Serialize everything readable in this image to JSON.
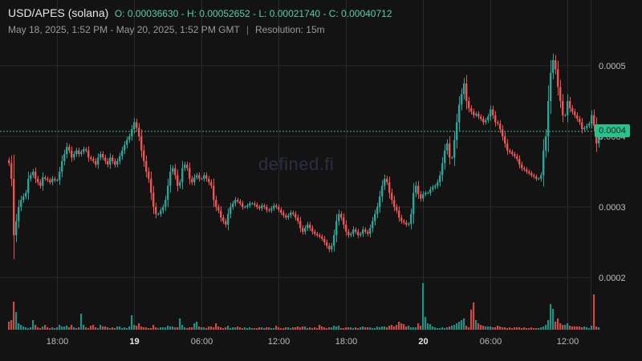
{
  "header": {
    "pair": "USD/APES (solana)",
    "ohlc": "O: 0.00036630 - H: 0.00052652 - L: 0.00021740 - C: 0.00040712",
    "range": "May 18, 2025, 1:52 PM - May 20, 2025, 1:52 PM GMT",
    "separator": "|",
    "resolution": "Resolution: 15m"
  },
  "watermark": "defined.fi",
  "current_price_label": "0.0004",
  "colors": {
    "background": "#131313",
    "up": "#26a69a",
    "down": "#ef5350",
    "grid": "#2a2a2a",
    "price_line": "#26c48f"
  },
  "chart_data": {
    "type": "candlestick",
    "title": "USD/APES (solana)",
    "resolution": "15m",
    "open": 0.0003663,
    "high": 0.00052652,
    "low": 0.0002174,
    "close": 0.00040712,
    "current_price": 0.00040712,
    "ylim": [
      0.00012,
      0.00058
    ],
    "y_ticks": [
      "0.0005",
      "0.0004",
      "0.0003",
      "0.0002"
    ],
    "y_tick_values": [
      0.0005,
      0.0004,
      0.0003,
      0.0002
    ],
    "x_tick_labels": [
      "18:00",
      "19",
      "06:00",
      "12:00",
      "18:00",
      "20",
      "06:00",
      "12:00"
    ],
    "x_tick_bold": [
      false,
      true,
      false,
      false,
      false,
      true,
      false,
      false
    ],
    "x_tick_index": [
      20,
      52,
      80,
      112,
      140,
      172,
      200,
      232
    ],
    "grid": true,
    "series": [
      {
        "name": "price",
        "close": [
          0.000362,
          0.00034,
          0.00026,
          0.00028,
          0.0003,
          0.00031,
          0.000315,
          0.00032,
          0.00034,
          0.000345,
          0.00035,
          0.00034,
          0.000335,
          0.00033,
          0.000342,
          0.00034,
          0.000338,
          0.000335,
          0.00034,
          0.000338,
          0.000338,
          0.00035,
          0.000365,
          0.000375,
          0.000385,
          0.00038,
          0.00037,
          0.000375,
          0.00038,
          0.000375,
          0.000378,
          0.000382,
          0.00038,
          0.00037,
          0.000368,
          0.000365,
          0.00036,
          0.00037,
          0.000375,
          0.00037,
          0.000365,
          0.00036,
          0.00037,
          0.000365,
          0.00036,
          0.000365,
          0.000372,
          0.00038,
          0.000388,
          0.000395,
          0.0004,
          0.00041,
          0.00042,
          0.000412,
          0.0004,
          0.00038,
          0.000365,
          0.00035,
          0.00034,
          0.00032,
          0.0003,
          0.00029,
          0.00029,
          0.000295,
          0.0003,
          0.00031,
          0.00033,
          0.00035,
          0.000355,
          0.000345,
          0.00033,
          0.000335,
          0.000355,
          0.00036,
          0.000355,
          0.00034,
          0.000335,
          0.000342,
          0.000345,
          0.00034,
          0.00034,
          0.000345,
          0.00034,
          0.000335,
          0.00033,
          0.00031,
          0.0003,
          0.000295,
          0.000285,
          0.00028,
          0.000275,
          0.00029,
          0.0003,
          0.000305,
          0.00031,
          0.000308,
          0.000305,
          0.0003,
          0.0003,
          0.000302,
          0.000305,
          0.000305,
          0.000303,
          0.0003,
          0.000298,
          0.000302,
          0.0003,
          0.000296,
          0.000295,
          0.000298,
          0.000302,
          0.0003,
          0.000296,
          0.000292,
          0.000288,
          0.000285,
          0.000288,
          0.000292,
          0.00029,
          0.000285,
          0.00028,
          0.00027,
          0.000265,
          0.00027,
          0.000275,
          0.00027,
          0.000265,
          0.000262,
          0.00026,
          0.000258,
          0.000255,
          0.00025,
          0.000245,
          0.00024,
          0.000245,
          0.00026,
          0.00028,
          0.00029,
          0.000285,
          0.000275,
          0.000265,
          0.00026,
          0.000262,
          0.000268,
          0.000265,
          0.00026,
          0.000262,
          0.000268,
          0.000265,
          0.000262,
          0.00027,
          0.00028,
          0.00029,
          0.0003,
          0.000315,
          0.00033,
          0.00034,
          0.000335,
          0.00032,
          0.00031,
          0.0003,
          0.000295,
          0.000285,
          0.00028,
          0.000278,
          0.000275,
          0.000276,
          0.00029,
          0.00032,
          0.00033,
          0.000318,
          0.000312,
          0.000318,
          0.00032,
          0.00032,
          0.000325,
          0.000328,
          0.00033,
          0.000335,
          0.000345,
          0.000362,
          0.00038,
          0.00039,
          0.00037,
          0.00037,
          0.000395,
          0.00042,
          0.000445,
          0.00046,
          0.000475,
          0.00045,
          0.00044,
          0.000435,
          0.00043,
          0.000432,
          0.000428,
          0.000425,
          0.00042,
          0.000423,
          0.000428,
          0.000438,
          0.00043,
          0.00042,
          0.000418,
          0.00041,
          0.0004,
          0.00039,
          0.00038,
          0.000378,
          0.000375,
          0.000372,
          0.000368,
          0.00036,
          0.000355,
          0.000353,
          0.00035,
          0.000348,
          0.000345,
          0.000343,
          0.00034,
          0.00034,
          0.000345,
          0.00038,
          0.0004,
          0.00045,
          0.00049,
          0.000508,
          0.000495,
          0.00047,
          0.00045,
          0.00043,
          0.00043,
          0.00045,
          0.00044,
          0.000435,
          0.00043,
          0.000425,
          0.00042,
          0.00041,
          0.000412,
          0.000415,
          0.000418,
          0.00043,
          0.000415,
          0.00039,
          0.0004,
          0.000407
        ]
      },
      {
        "name": "volume",
        "values": [
          10,
          12,
          35,
          22,
          8,
          6,
          4,
          3,
          2,
          3,
          12,
          6,
          3,
          2,
          4,
          6,
          3,
          2,
          3,
          2,
          3,
          6,
          4,
          4,
          5,
          3,
          6,
          3,
          2,
          3,
          20,
          6,
          3,
          2,
          5,
          6,
          3,
          2,
          6,
          4,
          4,
          3,
          2,
          3,
          2,
          4,
          4,
          2,
          3,
          2,
          4,
          18,
          6,
          5,
          8,
          4,
          3,
          3,
          2,
          2,
          6,
          3,
          2,
          3,
          3,
          3,
          5,
          4,
          4,
          3,
          3,
          14,
          6,
          3,
          2,
          3,
          3,
          8,
          10,
          4,
          3,
          3,
          2,
          4,
          4,
          3,
          8,
          4,
          3,
          2,
          3,
          5,
          2,
          3,
          3,
          4,
          3,
          2,
          3,
          2,
          3,
          2,
          2,
          2,
          3,
          3,
          2,
          3,
          3,
          2,
          2,
          5,
          3,
          2,
          2,
          3,
          3,
          2,
          3,
          3,
          4,
          3,
          4,
          4,
          2,
          3,
          2,
          3,
          2,
          6,
          4,
          3,
          2,
          3,
          3,
          5,
          4,
          5,
          2,
          2,
          3,
          3,
          3,
          2,
          3,
          2,
          3,
          4,
          3,
          3,
          3,
          2,
          2,
          4,
          3,
          4,
          4,
          3,
          5,
          6,
          4,
          6,
          10,
          8,
          7,
          4,
          5,
          3,
          3,
          3,
          8,
          5,
          58,
          16,
          8,
          7,
          4,
          3,
          2,
          2,
          3,
          2,
          3,
          4,
          5,
          6,
          8,
          10,
          12,
          14,
          5,
          3,
          25,
          34,
          12,
          8,
          6,
          5,
          4,
          4,
          4,
          3,
          3,
          5,
          4,
          3,
          3,
          2,
          3,
          2,
          3,
          3,
          3,
          2,
          3,
          2,
          2,
          3,
          2,
          2,
          2,
          3,
          4,
          6,
          12,
          32,
          26,
          10,
          14,
          8,
          6,
          6,
          8,
          5,
          4,
          4,
          4,
          4,
          3,
          4,
          3,
          2,
          5,
          44,
          4,
          3
        ]
      }
    ]
  }
}
